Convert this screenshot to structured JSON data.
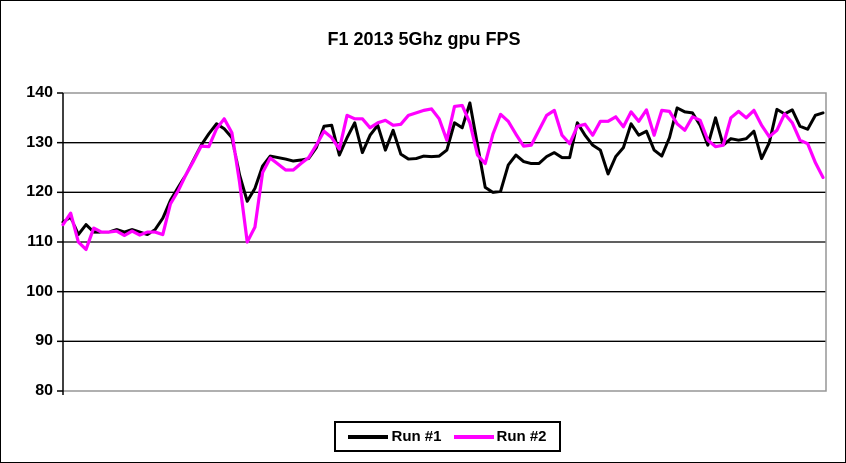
{
  "window": {
    "background": "#FFFFFF",
    "border_color": "#000000"
  },
  "chart_data": {
    "type": "line",
    "title": "F1 2013 5Ghz gpu FPS",
    "xlabel": "",
    "ylabel": "",
    "ylim": [
      80,
      140
    ],
    "yticks": [
      80,
      90,
      100,
      110,
      120,
      130,
      140
    ],
    "xticks": [],
    "grid": "horizontal-black-lines",
    "plot_border_color": "#969696",
    "axis_color": "#000000",
    "legend_position": "bottom-center",
    "series": [
      {
        "name": "Run #1",
        "color": "#000000",
        "values": [
          114,
          115,
          111.5,
          113.5,
          112,
          112,
          112,
          112.5,
          112,
          112.5,
          112,
          111.5,
          112.5,
          114.8,
          118.4,
          121,
          123.5,
          126.5,
          129.5,
          131.8,
          133.8,
          132.8,
          131,
          123.5,
          118.2,
          120.8,
          125.3,
          127.3,
          127,
          126.7,
          126.3,
          126.5,
          126.8,
          129,
          133.3,
          133.5,
          127.5,
          131,
          134,
          128,
          131.5,
          133.5,
          128.5,
          132.5,
          127.7,
          126.7,
          126.8,
          127.3,
          127.2,
          127.3,
          128.5,
          134,
          133,
          138,
          129.5,
          121,
          120,
          120.2,
          125.5,
          127.5,
          126.2,
          125.8,
          125.8,
          127.2,
          128,
          127,
          127,
          134,
          131.5,
          129.5,
          128.5,
          123.7,
          127.2,
          129,
          133.8,
          131.5,
          132.3,
          128.5,
          127.3,
          131,
          137,
          136.2,
          136,
          133.5,
          129.5,
          135,
          129.5,
          130.8,
          130.5,
          130.8,
          132.3,
          126.8,
          130,
          136.7,
          135.8,
          136.6,
          133.3,
          132.7,
          135.5,
          136
        ]
      },
      {
        "name": "Run #2",
        "color": "#FF00FF",
        "values": [
          113.5,
          115.8,
          110,
          108.5,
          112.8,
          112,
          112,
          112.2,
          111.3,
          112.2,
          111.4,
          112,
          112,
          111.5,
          117.7,
          120.3,
          123.5,
          126.3,
          129.3,
          129.2,
          132.8,
          134.8,
          132,
          122,
          110,
          113,
          124,
          126.9,
          125.7,
          124.5,
          124.5,
          125.8,
          127,
          129.5,
          132.3,
          131,
          128.7,
          135.5,
          134.8,
          134.8,
          133,
          134,
          134.5,
          133.5,
          133.7,
          135.5,
          136,
          136.5,
          136.8,
          134.8,
          130.5,
          137.3,
          137.5,
          134,
          127.5,
          125.8,
          131.7,
          135.7,
          134.3,
          131.7,
          129.3,
          129.5,
          132.5,
          135.5,
          136.5,
          131.5,
          129.8,
          133.3,
          133.7,
          131.5,
          134.3,
          134.3,
          135.2,
          133.2,
          136.2,
          134.3,
          136.6,
          131.5,
          136.5,
          136.3,
          133.8,
          132.5,
          135.2,
          134.5,
          130.5,
          129.2,
          129.5,
          135,
          136.3,
          135,
          136.5,
          133.5,
          131.2,
          132.5,
          135.8,
          134,
          130.5,
          129.8,
          126,
          123
        ]
      }
    ]
  },
  "legend": {
    "items": [
      {
        "label": "Run #1",
        "color": "#000000"
      },
      {
        "label": "Run #2",
        "color": "#FF00FF"
      }
    ]
  }
}
